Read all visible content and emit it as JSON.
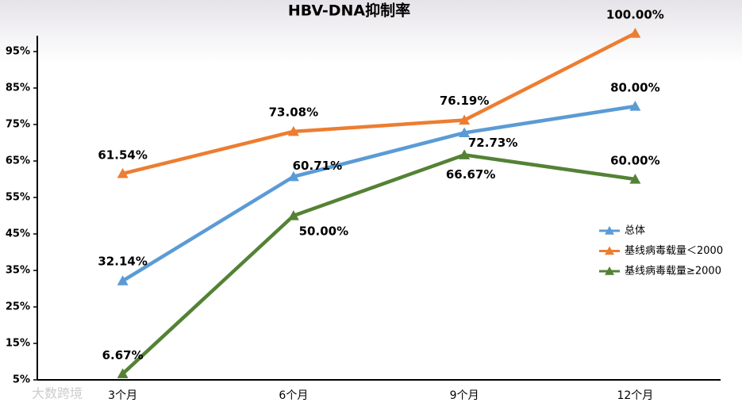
{
  "chart_data": {
    "type": "line",
    "title": "HBV-DNA抑制率",
    "watermark": "大数跨境",
    "categories": [
      "3个月",
      "6个月",
      "9个月",
      "12个月"
    ],
    "series": [
      {
        "name": "总体",
        "color": "#5b9bd5",
        "values": [
          32.14,
          60.71,
          72.73,
          80
        ],
        "value_labels": [
          "32.14%",
          "60.71%",
          "72.73%",
          "80.00%"
        ]
      },
      {
        "name": "基线病毒载量＜2000",
        "color": "#ed7d31",
        "values": [
          61.54,
          73.08,
          76.19,
          100
        ],
        "value_labels": [
          "61.54%",
          "73.08%",
          "76.19%",
          "100.00%"
        ]
      },
      {
        "name": "基线病毒载量≥2000",
        "color": "#548235",
        "values": [
          6.67,
          50,
          66.67,
          60
        ],
        "value_labels": [
          "6.67%",
          "50.00%",
          "66.67%",
          "60.00%"
        ]
      }
    ],
    "ylim": [
      5,
      100
    ],
    "yticks": [
      {
        "value": 5,
        "label": "5%"
      },
      {
        "value": 15,
        "label": "15%"
      },
      {
        "value": 25,
        "label": "25%"
      },
      {
        "value": 35,
        "label": "35%"
      },
      {
        "value": 45,
        "label": "45%"
      },
      {
        "value": 55,
        "label": "55%"
      },
      {
        "value": 65,
        "label": "65%"
      },
      {
        "value": 75,
        "label": "75%"
      },
      {
        "value": 85,
        "label": "85%"
      },
      {
        "value": 95,
        "label": "95%"
      }
    ],
    "grid": false,
    "legend": "right"
  }
}
